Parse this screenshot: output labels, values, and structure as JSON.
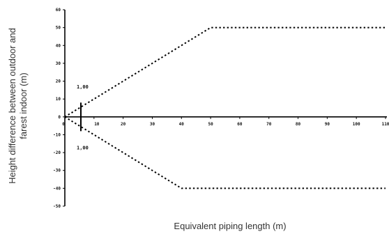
{
  "chart_data": {
    "type": "line",
    "xlabel": "Equivalent piping length (m)",
    "ylabel_lines": [
      "Height difference between outdoor and",
      "farest indoor (m)"
    ],
    "xlim": [
      0,
      110
    ],
    "ylim": [
      -50,
      60
    ],
    "x_ticks": [
      "0",
      "10",
      "20",
      "30",
      "40",
      "50",
      "60",
      "70",
      "80",
      "90",
      "100",
      "110"
    ],
    "y_ticks": [
      "60",
      "50",
      "40",
      "30",
      "20",
      "10",
      "0",
      "-10",
      "-20",
      "-30",
      "-40",
      "-50"
    ],
    "series": [
      {
        "x": [
          0,
          50,
          110
        ],
        "y": [
          0,
          50,
          50
        ]
      },
      {
        "x": [
          0,
          40,
          110
        ],
        "y": [
          0,
          -40,
          -40
        ]
      }
    ],
    "annotations": [
      {
        "text": "1,00",
        "x": 5.5,
        "y": 17,
        "position": "above-right"
      },
      {
        "text": "1,00",
        "x": 5.5,
        "y": -17,
        "position": "below-right"
      }
    ],
    "marker_x": 5.5,
    "marker_y_range": [
      -8,
      8
    ],
    "grid": false,
    "legend": "none"
  }
}
